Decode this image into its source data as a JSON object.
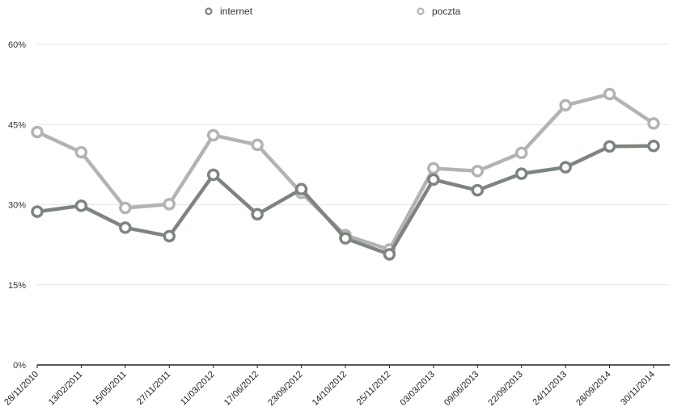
{
  "chart_data": {
    "type": "line",
    "title": "",
    "xlabel": "",
    "ylabel": "",
    "categories": [
      "28/11/2010",
      "13/02/2011",
      "15/05/2011",
      "27/11/2011",
      "11/03/2012",
      "17/06/2012",
      "23/09/2012",
      "14/10/2012",
      "25/11/2012",
      "03/03/2013",
      "09/06/2013",
      "22/09/2013",
      "24/11/2013",
      "28/09/2014",
      "30/11/2014"
    ],
    "ylim": [
      0,
      60
    ],
    "yticks": [
      0,
      15,
      30,
      45,
      60
    ],
    "ytick_labels": [
      "0%",
      "15%",
      "30%",
      "45%",
      "60%"
    ],
    "grid": true,
    "legend_position": "top",
    "series": [
      {
        "name": "internet",
        "color": "#7d857e",
        "values": [
          28.7,
          29.8,
          25.7,
          24.1,
          35.6,
          28.2,
          32.9,
          23.7,
          20.7,
          34.7,
          32.7,
          35.8,
          37.0,
          40.9,
          41.0
        ]
      },
      {
        "name": "poczta",
        "color": "#b3b3b3",
        "values": [
          43.6,
          39.8,
          29.4,
          30.1,
          43.0,
          41.2,
          32.2,
          24.3,
          21.6,
          36.8,
          36.3,
          39.7,
          48.6,
          50.7,
          45.2
        ]
      }
    ]
  }
}
